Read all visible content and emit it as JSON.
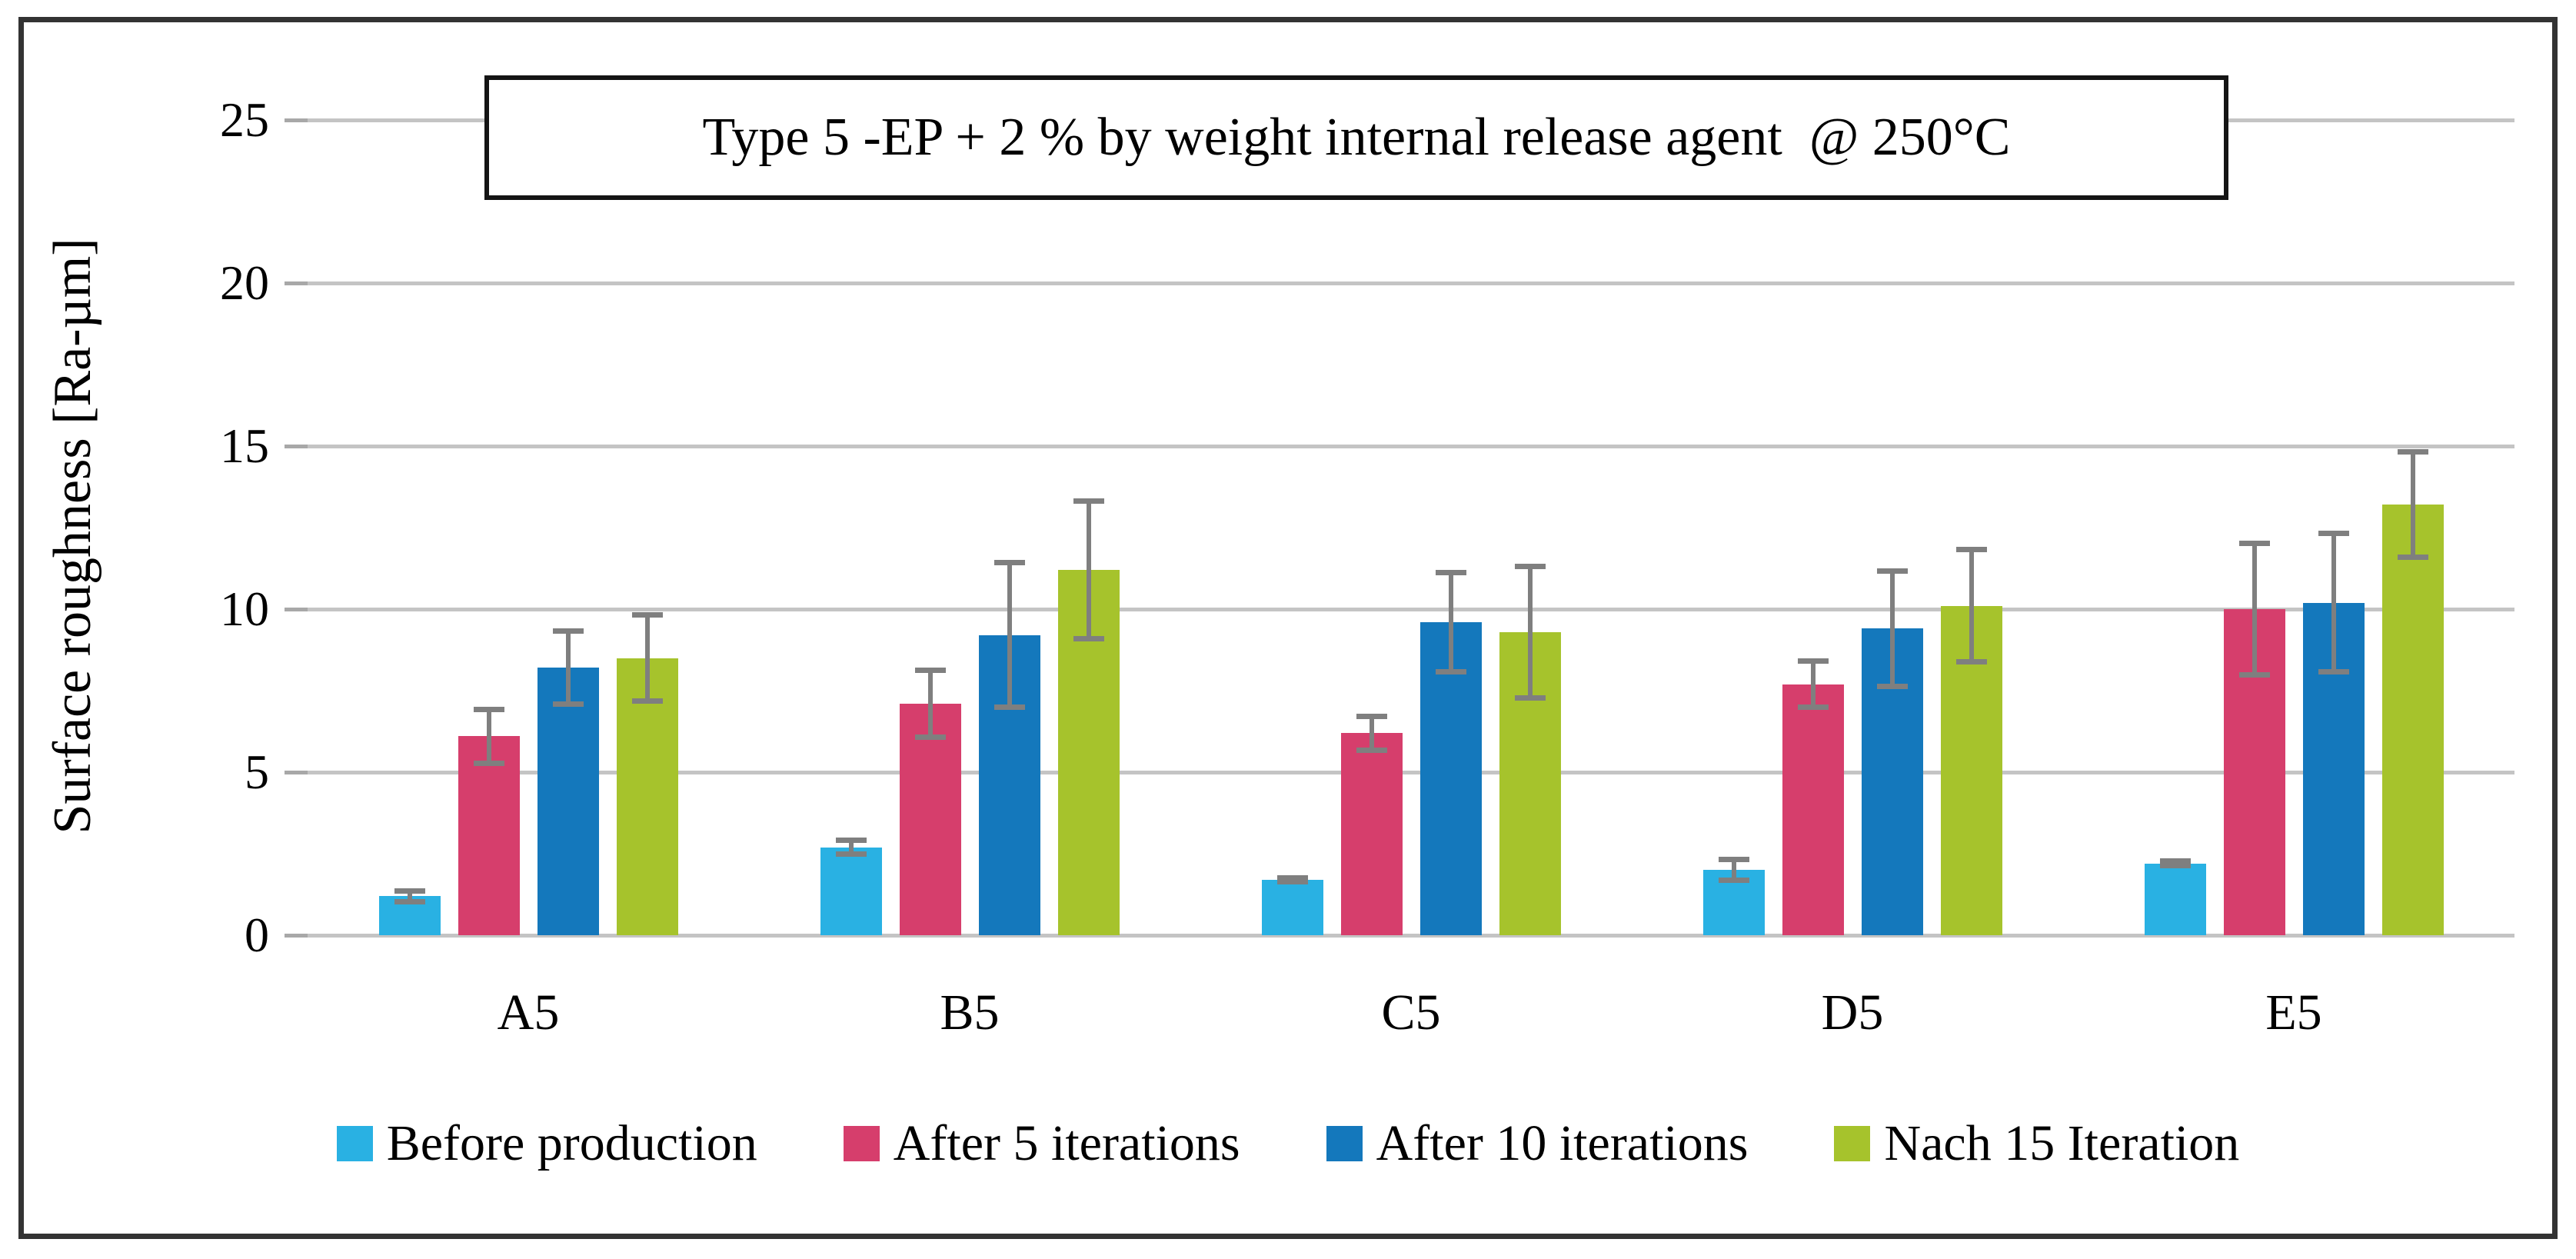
{
  "figure": {
    "kind": "grouped-bar-chart-figure",
    "frame_color": "#333333"
  },
  "chart_data": {
    "type": "bar",
    "title": "Type 5 -EP + 2 % by weight internal release agent  @ 250°C",
    "xlabel": "",
    "ylabel": "Surface roughness [Ra-µm]",
    "ylim": [
      0,
      25
    ],
    "yticks": [
      0,
      5,
      10,
      15,
      20,
      25
    ],
    "grid": true,
    "legend_position": "bottom",
    "categories": [
      "A5",
      "B5",
      "C5",
      "D5",
      "E5"
    ],
    "series": [
      {
        "name": "Before production",
        "color": "#29B1E3",
        "values": [
          1.2,
          2.7,
          1.7,
          2.0,
          2.2
        ],
        "errors": [
          0.25,
          0.3,
          0.15,
          0.4,
          0.15
        ]
      },
      {
        "name": "After 5 iterations",
        "color": "#D63E6C",
        "values": [
          6.1,
          7.1,
          6.2,
          7.7,
          10.0
        ],
        "errors": [
          0.9,
          1.1,
          0.6,
          0.8,
          2.1
        ]
      },
      {
        "name": "After 10 iterations",
        "color": "#1478BC",
        "values": [
          8.2,
          9.2,
          9.6,
          9.4,
          10.2
        ],
        "errors": [
          1.2,
          2.3,
          1.6,
          1.85,
          2.2
        ]
      },
      {
        "name": "Nach 15 Iteration",
        "color": "#A6C32C",
        "values": [
          8.5,
          11.2,
          9.3,
          10.1,
          13.2
        ],
        "errors": [
          1.4,
          2.2,
          2.1,
          1.8,
          1.7
        ]
      }
    ],
    "gridline_color": "#C4C4C4",
    "tick_color": "#A8A8A8",
    "error_bar_color": "#7F7F7F"
  }
}
